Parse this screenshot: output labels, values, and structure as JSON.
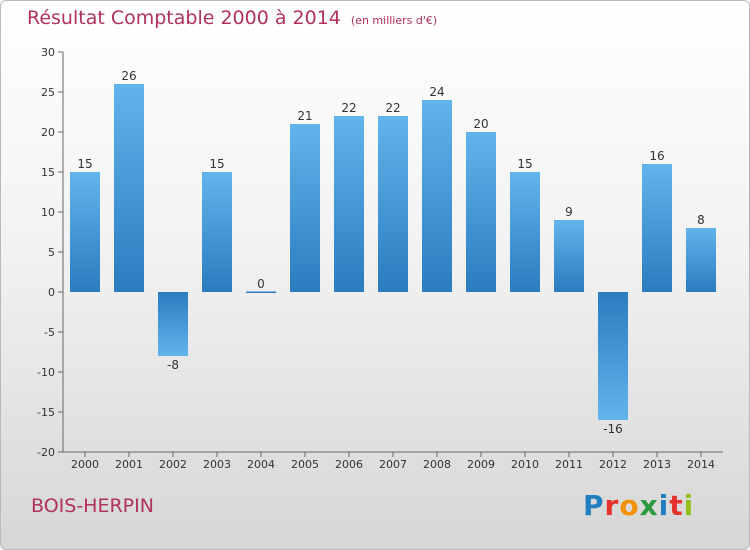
{
  "title": "Résultat Comptable 2000 à 2014",
  "subtitle": "(en milliers d'€)",
  "commune": "BOIS-HERPIN",
  "brand": [
    "P",
    "r",
    "o",
    "x",
    "i",
    "t",
    "i"
  ],
  "brand_colors": [
    "#1f7fc1",
    "#e5322d",
    "#f39200",
    "#2c9a3f",
    "#1f7fc1",
    "#e5322d",
    "#95c11f"
  ],
  "colors": {
    "title": "#b03060",
    "bar_light": "#63b3ec",
    "bar_dark": "#2a7cbf"
  },
  "chart_data": {
    "type": "bar",
    "title": "Résultat Comptable 2000 à 2014",
    "subtitle": "(en milliers d'€)",
    "xlabel": "",
    "ylabel": "",
    "categories": [
      "2000",
      "2001",
      "2002",
      "2003",
      "2004",
      "2005",
      "2006",
      "2007",
      "2008",
      "2009",
      "2010",
      "2011",
      "2012",
      "2013",
      "2014"
    ],
    "values": [
      15,
      26,
      -8,
      15,
      0,
      21,
      22,
      22,
      24,
      20,
      15,
      9,
      -16,
      16,
      8
    ],
    "data_labels": [
      "15",
      "26",
      "-8",
      "15",
      "0",
      "21",
      "22",
      "22",
      "24",
      "20",
      "15",
      "9",
      "-16",
      "16",
      "8"
    ],
    "ylim": [
      -20,
      30
    ],
    "yticks": [
      30,
      25,
      20,
      15,
      10,
      5,
      0,
      -5,
      -10,
      -15,
      -20
    ],
    "grid": false
  }
}
